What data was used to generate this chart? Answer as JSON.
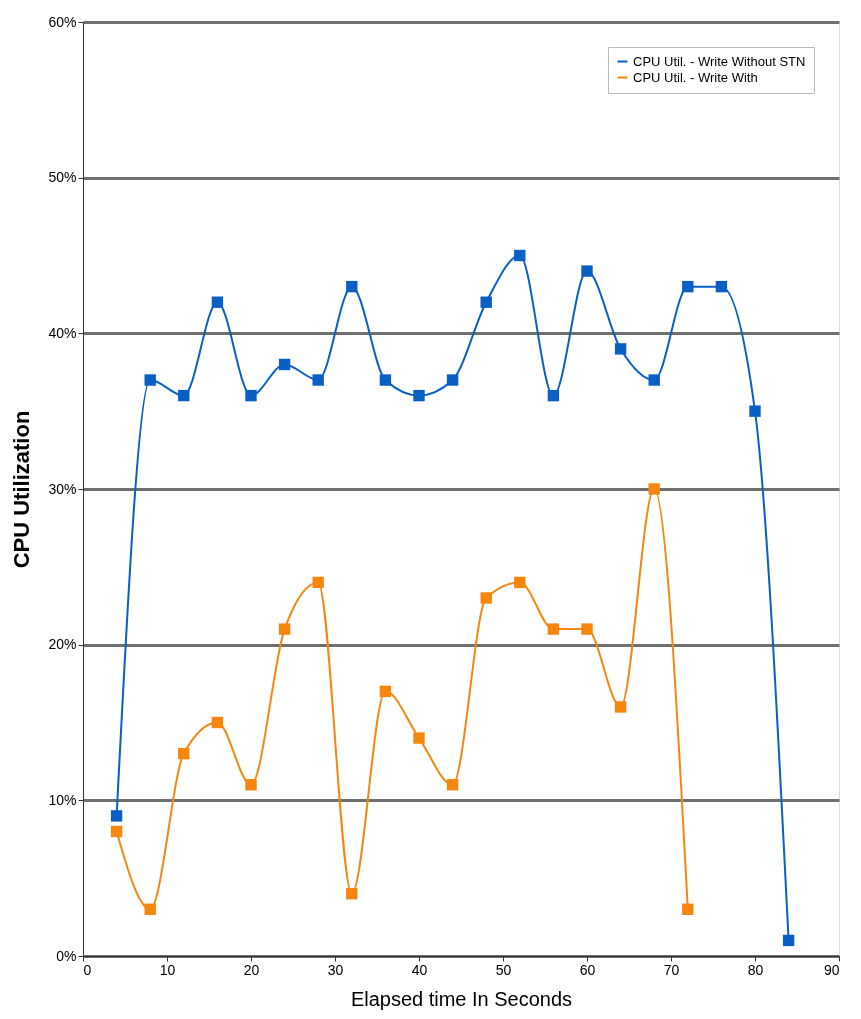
{
  "chart_data": {
    "type": "line",
    "xlabel": "Elapsed time In Seconds",
    "ylabel": "CPU Utilization",
    "x": [
      4,
      8,
      12,
      16,
      20,
      24,
      28,
      32,
      36,
      40,
      44,
      48,
      52,
      56,
      60,
      64,
      68,
      72,
      76,
      80,
      84
    ],
    "series": [
      {
        "name": "CPU Util. - Write Without STN",
        "color": "#0a5fc4",
        "values": [
          9,
          37,
          36,
          42,
          36,
          38,
          37,
          43,
          37,
          36,
          37,
          42,
          45,
          36,
          44,
          39,
          37,
          43,
          43,
          35,
          1
        ]
      },
      {
        "name": "CPU Util. - Write With",
        "color": "#f7860f",
        "values": [
          8,
          3,
          13,
          15,
          11,
          21,
          24,
          4,
          17,
          14,
          11,
          23,
          24,
          21,
          21,
          16,
          30,
          3,
          null,
          null,
          null
        ]
      }
    ],
    "xlim": [
      0,
      90
    ],
    "xticks": [
      0,
      10,
      20,
      30,
      40,
      50,
      60,
      70,
      80,
      90
    ],
    "ylim": [
      0,
      60
    ],
    "yticks": [
      {
        "value": 0,
        "label": "0%"
      },
      {
        "value": 10,
        "label": "10%"
      },
      {
        "value": 20,
        "label": "20%"
      },
      {
        "value": 30,
        "label": "30%"
      },
      {
        "value": 40,
        "label": "40%"
      },
      {
        "value": 50,
        "label": "50%"
      },
      {
        "value": 60,
        "label": "60%"
      }
    ],
    "grid": "y",
    "legend": "top right",
    "marker": "square",
    "line_style": "solid"
  }
}
